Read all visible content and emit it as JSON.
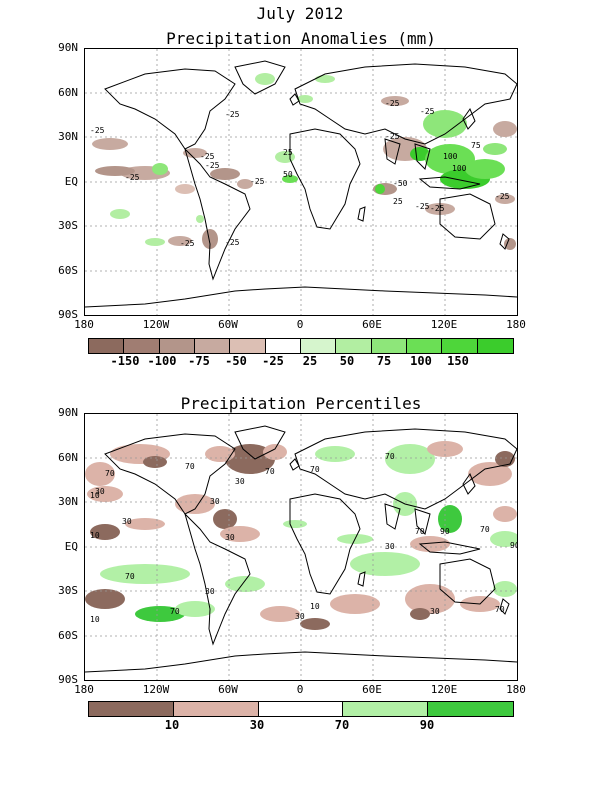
{
  "page_title": "July 2012",
  "panels": {
    "anomalies": {
      "title": "Precipitation Anomalies (mm)",
      "lat_ticks": [
        "90N",
        "60N",
        "30N",
        "EQ",
        "30S",
        "60S",
        "90S"
      ],
      "lon_ticks": [
        "180",
        "120W",
        "60W",
        "0",
        "60E",
        "120E",
        "180"
      ],
      "colorbar": {
        "colors": [
          "#8c6a5e",
          "#a07d72",
          "#b3958a",
          "#c7aaa0",
          "#dcbfb4",
          "#ffffff",
          "#d6f5cd",
          "#b2eea2",
          "#8ee67a",
          "#6bdf55",
          "#4ed63a",
          "#3bcc2c"
        ],
        "labels": [
          "-150",
          "-100",
          "-75",
          "-50",
          "-25",
          "25",
          "50",
          "75",
          "100",
          "150"
        ]
      },
      "contour_labels": [
        "-25",
        "-25",
        "-25",
        "-25",
        "-25",
        "-25",
        "-25",
        "-25",
        "-25",
        "25",
        "50",
        "100",
        "100",
        "75",
        "25",
        "-50",
        "-25",
        "-25",
        "-25",
        "-25",
        "-25"
      ]
    },
    "percentiles": {
      "title": "Precipitation Percentiles",
      "lat_ticks": [
        "90N",
        "60N",
        "30N",
        "EQ",
        "30S",
        "60S",
        "90S"
      ],
      "lon_ticks": [
        "180",
        "120W",
        "60W",
        "0",
        "60E",
        "120E",
        "180"
      ],
      "colorbar": {
        "colors": [
          "#8c6a5e",
          "#dcb3a8",
          "#ffffff",
          "#b2f0a6",
          "#3ec93e"
        ],
        "labels": [
          "10",
          "30",
          "70",
          "90"
        ]
      },
      "contour_labels": [
        "70",
        "30",
        "10",
        "30",
        "70",
        "30",
        "10",
        "30",
        "70",
        "30",
        "70",
        "90",
        "10",
        "30",
        "70",
        "70",
        "30",
        "10",
        "70",
        "90",
        "70",
        "30",
        "70",
        "30",
        "70"
      ]
    }
  }
}
